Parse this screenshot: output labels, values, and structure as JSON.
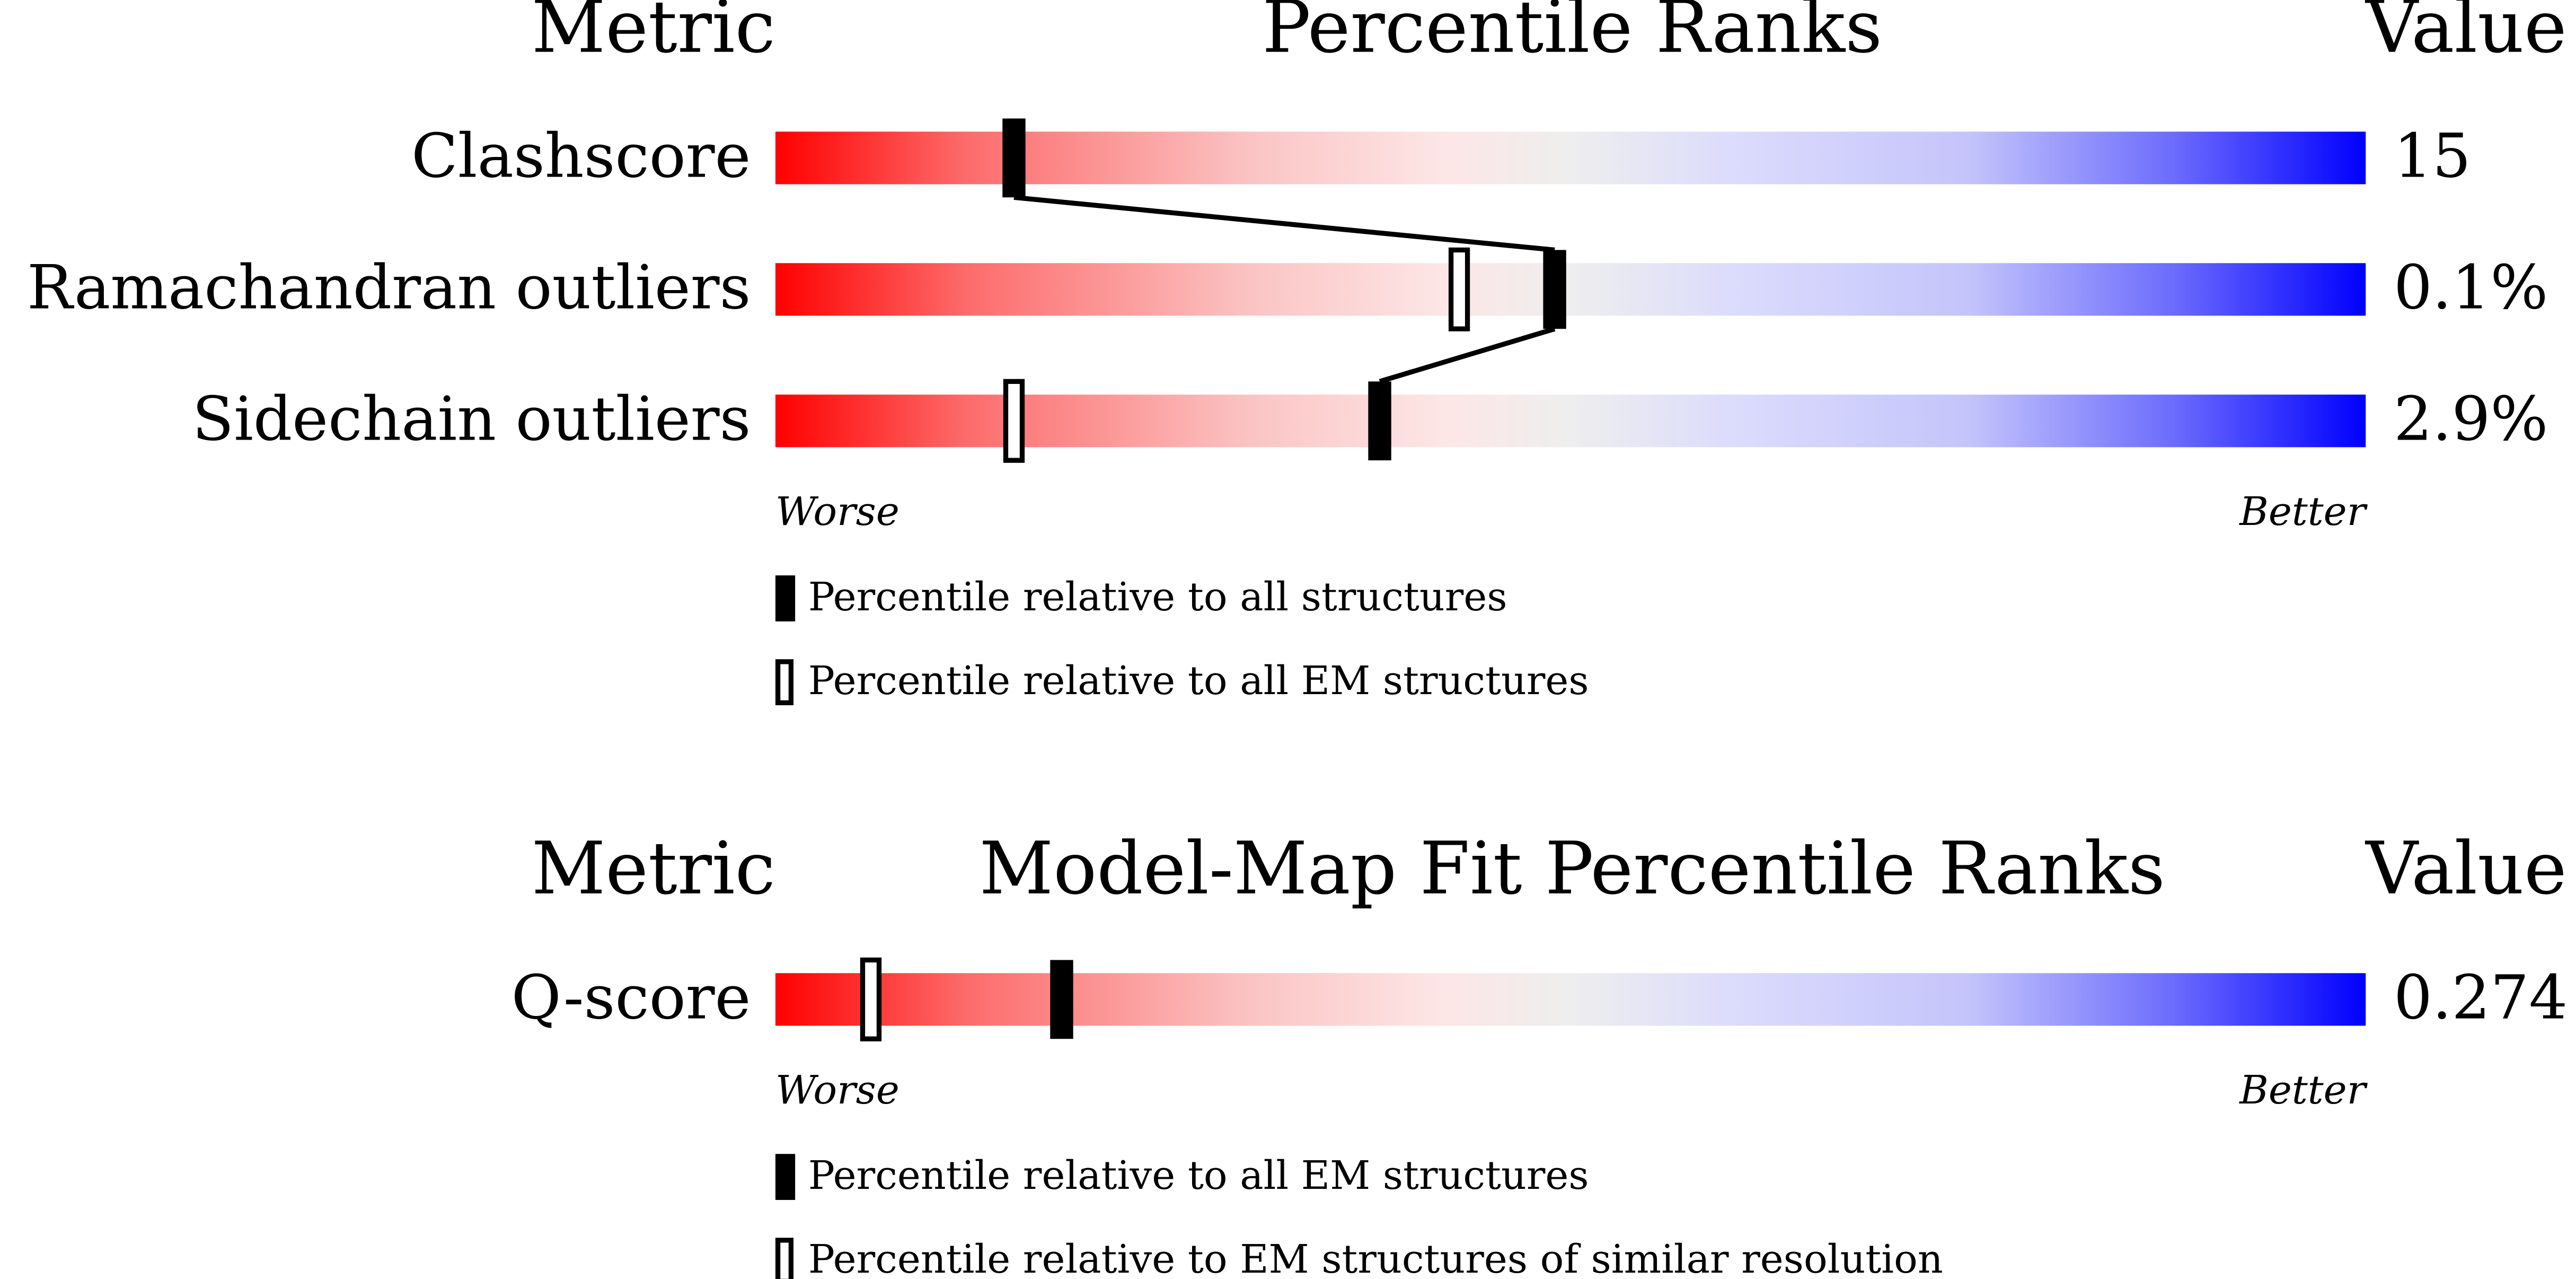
{
  "panels": [
    {
      "header": {
        "metric": "Metric",
        "title": "Percentile Ranks",
        "value": "Value"
      },
      "xlim": [
        0,
        100
      ],
      "rows": [
        {
          "label": "Clashscore",
          "value": "15",
          "primary": 15,
          "secondary": null
        },
        {
          "label": "Ramachandran outliers",
          "value": "0.1%",
          "primary": 49,
          "secondary": 43
        },
        {
          "label": "Sidechain outliers",
          "value": "2.9%",
          "primary": 38,
          "secondary": 15
        }
      ],
      "worse": "Worse",
      "better": "Better",
      "legend": [
        {
          "label": "Percentile relative to all structures",
          "style": "filled"
        },
        {
          "label": "Percentile relative to all EM structures",
          "style": "open"
        }
      ]
    },
    {
      "header": {
        "metric": "Metric",
        "title": "Model-Map Fit Percentile Ranks",
        "value": "Value"
      },
      "xlim": [
        0,
        100
      ],
      "rows": [
        {
          "label": "Q-score",
          "value": "0.274",
          "primary": 18,
          "secondary": 6
        }
      ],
      "worse": "Worse",
      "better": "Better",
      "legend": [
        {
          "label": "Percentile relative to all EM structures",
          "style": "filled"
        },
        {
          "label": "Percentile relative to EM structures of similar resolution",
          "style": "open"
        }
      ]
    }
  ]
}
